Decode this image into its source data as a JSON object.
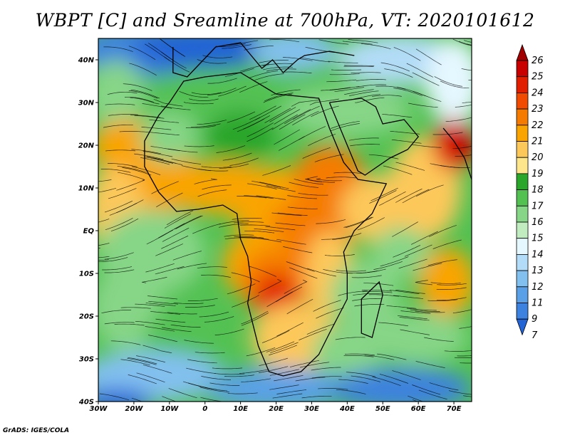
{
  "title": "WBPT [C] and Sreamline at 700hPa, VT: 2020101612",
  "credit": "GrADS: IGES/COLA",
  "map": {
    "lon_range": [
      -30,
      75
    ],
    "lat_range": [
      -40,
      45
    ],
    "lat_ticks": [
      {
        "value": 40,
        "label": "40N"
      },
      {
        "value": 30,
        "label": "30N"
      },
      {
        "value": 20,
        "label": "20N"
      },
      {
        "value": 10,
        "label": "10N"
      },
      {
        "value": 0,
        "label": "EQ"
      },
      {
        "value": -10,
        "label": "10S"
      },
      {
        "value": -20,
        "label": "20S"
      },
      {
        "value": -30,
        "label": "30S"
      },
      {
        "value": -40,
        "label": "40S"
      }
    ],
    "lon_ticks": [
      {
        "value": -30,
        "label": "30W"
      },
      {
        "value": -20,
        "label": "20W"
      },
      {
        "value": -10,
        "label": "10W"
      },
      {
        "value": 0,
        "label": "0"
      },
      {
        "value": 10,
        "label": "10E"
      },
      {
        "value": 20,
        "label": "20E"
      },
      {
        "value": 30,
        "label": "30E"
      },
      {
        "value": 40,
        "label": "40E"
      },
      {
        "value": 50,
        "label": "50E"
      },
      {
        "value": 60,
        "label": "60E"
      },
      {
        "value": 70,
        "label": "70E"
      }
    ]
  },
  "colorbar": {
    "labels": [
      "26",
      "25",
      "24",
      "23",
      "22",
      "21",
      "20",
      "19",
      "18",
      "17",
      "16",
      "15",
      "14",
      "13",
      "12",
      "11",
      "9",
      "7"
    ],
    "colors": [
      "#a00000",
      "#c80000",
      "#e11e00",
      "#f04b00",
      "#f57b00",
      "#f9a400",
      "#fdc85a",
      "#fde68c",
      "#2aa62a",
      "#52c152",
      "#87d587",
      "#c0ecc0",
      "#e5f7ff",
      "#b2dcf7",
      "#82c0ef",
      "#5aa0e6",
      "#3c82de",
      "#2264d6"
    ]
  }
}
